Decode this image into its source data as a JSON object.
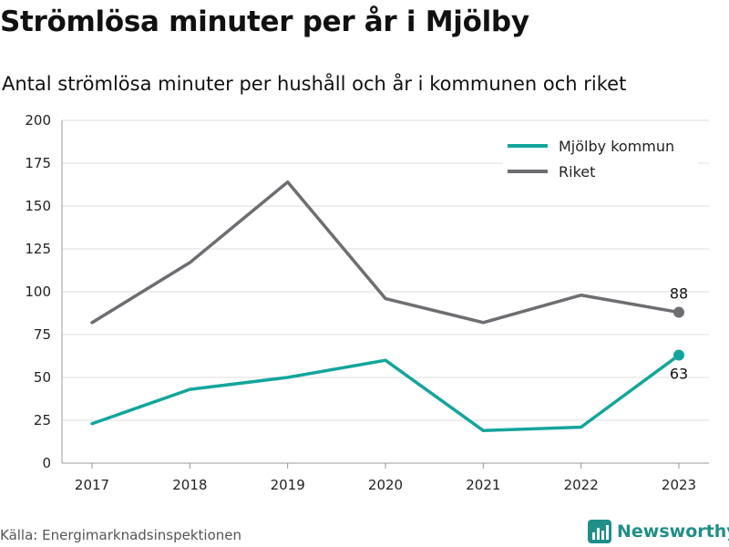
{
  "header": {
    "title": "Strömlösa minuter per år i Mjölby",
    "subtitle": "Antal strömlösa minuter per hushåll och år i kommunen och riket"
  },
  "footer": {
    "source": "Källa: Energimarknadsinspektionen",
    "brand": "Newsworthy"
  },
  "chart_data": {
    "type": "line",
    "title": "Strömlösa minuter per år i Mjölby",
    "subtitle": "Antal strömlösa minuter per hushåll och år i kommunen och riket",
    "xlabel": "",
    "ylabel": "",
    "categories": [
      "2017",
      "2018",
      "2019",
      "2020",
      "2021",
      "2022",
      "2023"
    ],
    "ylim": [
      0,
      200
    ],
    "yticks": [
      0,
      25,
      50,
      75,
      100,
      125,
      150,
      175,
      200
    ],
    "grid": true,
    "legend_position": "top-right",
    "series": [
      {
        "name": "Mjölby kommun",
        "color": "#13a59c",
        "values": [
          23,
          43,
          50,
          60,
          19,
          21,
          63
        ],
        "end_label": "63"
      },
      {
        "name": "Riket",
        "color": "#6d6d72",
        "values": [
          82,
          117,
          164,
          96,
          82,
          98,
          88
        ],
        "end_label": "88"
      }
    ]
  }
}
